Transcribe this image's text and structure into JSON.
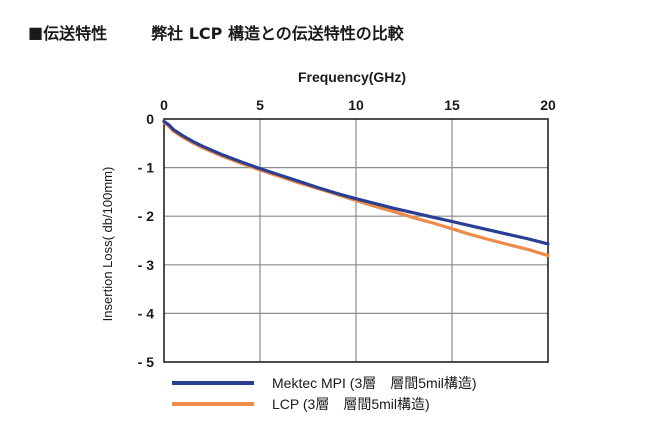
{
  "heading": {
    "marker": "■",
    "section": "伝送特性",
    "title": "弊社 LCP 構造との伝送特性の比較"
  },
  "chart_data": {
    "type": "line",
    "xlabel": "Frequency(GHz)",
    "ylabel": "Insertion Loss( db/100mm)",
    "xlim": [
      0,
      20
    ],
    "ylim": [
      -5,
      0
    ],
    "x_ticks": [
      "0",
      "5",
      "10",
      "15",
      "20"
    ],
    "y_ticks": [
      "0",
      "- 1",
      "- 2",
      "- 3",
      "- 4",
      "- 5"
    ],
    "grid": true,
    "x_axis_position": "top",
    "legend_position": "bottom",
    "series": [
      {
        "name": "Mektec MPI (3層　層間5mil構造)",
        "color": "#2a3f93",
        "x": [
          0,
          0.25,
          0.5,
          1,
          1.5,
          2,
          3,
          4,
          5,
          6,
          7,
          8,
          9,
          10,
          11,
          12,
          13,
          14,
          15,
          16,
          17,
          18,
          19,
          20
        ],
        "y": [
          -0.05,
          -0.12,
          -0.22,
          -0.35,
          -0.46,
          -0.56,
          -0.73,
          -0.88,
          -1.02,
          -1.15,
          -1.28,
          -1.41,
          -1.53,
          -1.64,
          -1.74,
          -1.84,
          -1.93,
          -2.02,
          -2.11,
          -2.2,
          -2.29,
          -2.38,
          -2.47,
          -2.57
        ]
      },
      {
        "name": "LCP (3層　層間5mil構造)",
        "color": "#ee8a4a",
        "x": [
          0,
          0.25,
          0.5,
          1,
          1.5,
          2,
          3,
          4,
          5,
          6,
          7,
          8,
          9,
          10,
          11,
          12,
          13,
          14,
          15,
          16,
          17,
          18,
          19,
          20
        ],
        "y": [
          -0.07,
          -0.15,
          -0.25,
          -0.38,
          -0.49,
          -0.59,
          -0.76,
          -0.91,
          -1.05,
          -1.18,
          -1.31,
          -1.43,
          -1.55,
          -1.68,
          -1.8,
          -1.91,
          -2.03,
          -2.14,
          -2.26,
          -2.38,
          -2.49,
          -2.59,
          -2.69,
          -2.81
        ]
      }
    ]
  }
}
